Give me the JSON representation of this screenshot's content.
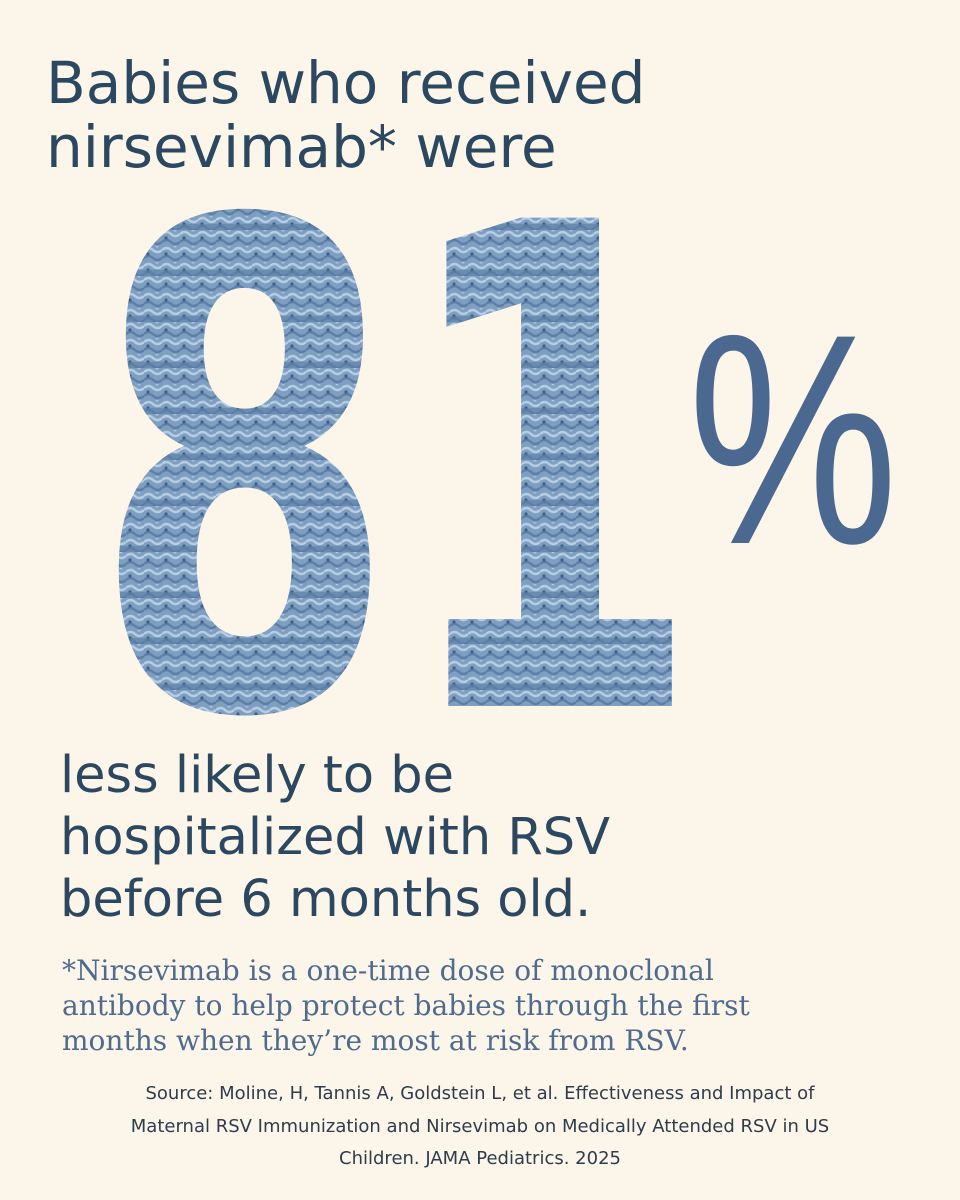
{
  "headline": {
    "lines": [
      "Babies who received",
      "nirsevimab* were"
    ]
  },
  "stat": {
    "number": "81",
    "unit": "%"
  },
  "body": {
    "lines": [
      "less likely to be",
      "hospitalized with RSV",
      "before 6 months old."
    ]
  },
  "footnote": {
    "lines": [
      "*Nirsevimab is a one-time dose of monoclonal",
      "antibody to help protect babies through the first",
      "months when they’re most at risk from RSV."
    ]
  },
  "source": {
    "lines": [
      "Source:  Moline, H, Tannis A, Goldstein L, et al. Effectiveness and Impact of",
      "Maternal RSV Immunization and Nirsevimab on Medically Attended RSV in US",
      "Children. JAMA Pediatrics. 2025"
    ]
  }
}
